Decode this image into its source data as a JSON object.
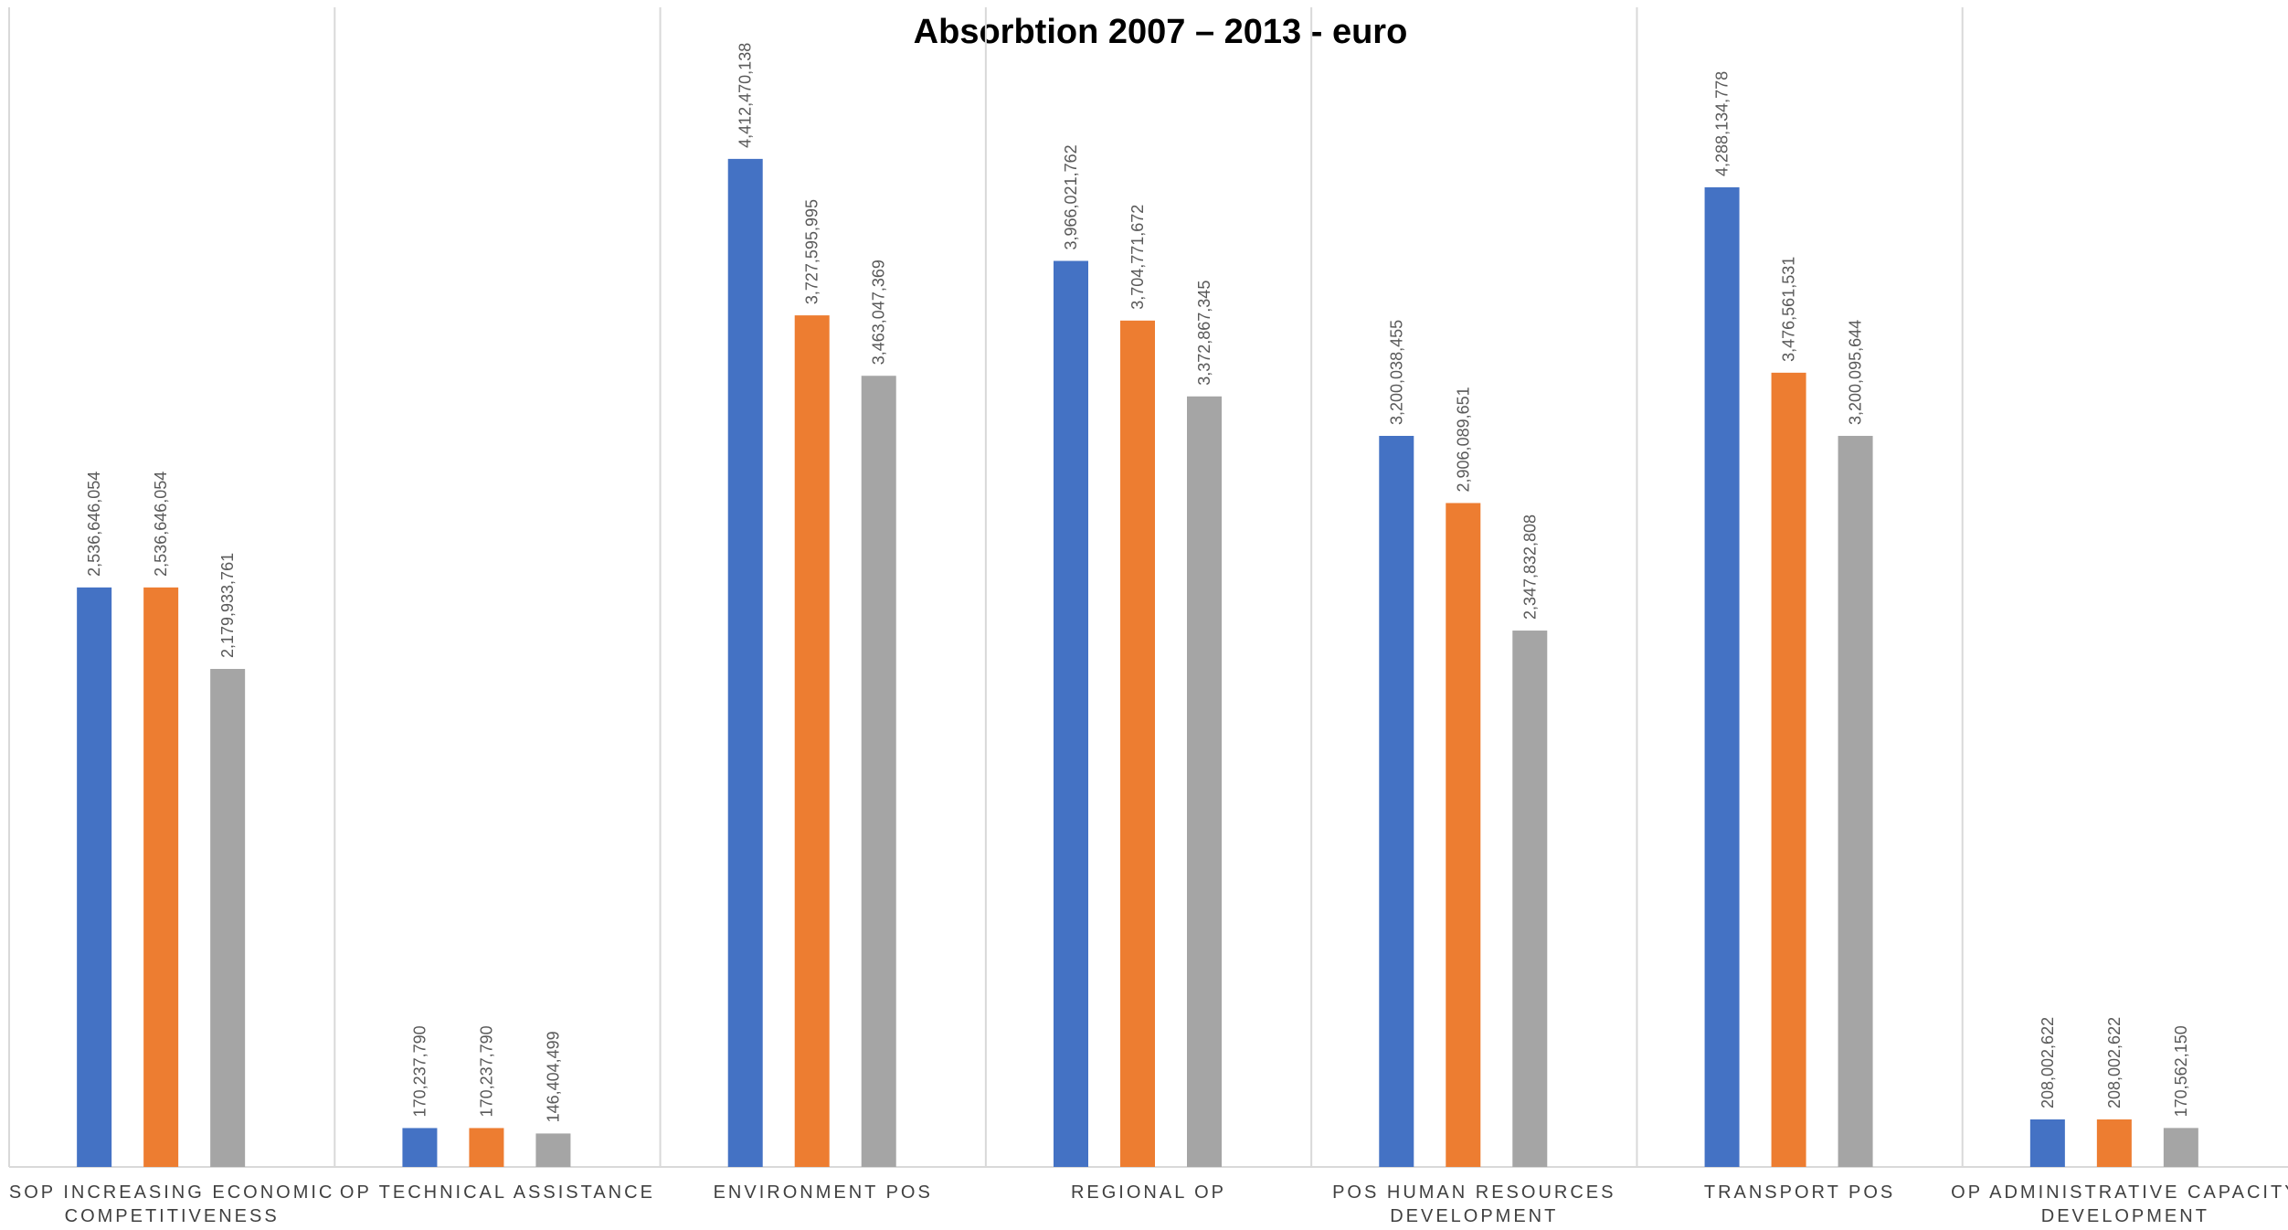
{
  "chart_data": {
    "type": "bar",
    "title": "Absorbtion 2007 – 2013 - euro",
    "xlabel": "",
    "ylabel": "",
    "ylim": [
      0,
      4800000000
    ],
    "grid": "vertical category separators",
    "legend": "none",
    "categories": [
      [
        "SOP INCREASING ECONOMIC",
        "COMPETITIVENESS"
      ],
      [
        "OP TECHNICAL ASSISTANCE"
      ],
      [
        "ENVIRONMENT POS"
      ],
      [
        "REGIONAL OP"
      ],
      [
        "POS HUMAN RESOURCES",
        "DEVELOPMENT"
      ],
      [
        "TRANSPORT POS"
      ],
      [
        "OP ADMINISTRATIVE CAPACITY",
        "DEVELOPMENT"
      ]
    ],
    "series": [
      {
        "color": "#4472C4",
        "values": [
          2536646054,
          170237790,
          4412470138,
          3966021762,
          3200038455,
          4288134778,
          208002622
        ],
        "labels": [
          "2,536,646,054",
          "170,237,790",
          "4,412,470,138",
          "3,966,021,762",
          "3,200,038,455",
          "4,288,134,778",
          "208,002,622"
        ]
      },
      {
        "color": "#ED7D31",
        "values": [
          2536646054,
          170237790,
          3727595995,
          3704771672,
          2906089651,
          3476561531,
          208002622
        ],
        "labels": [
          "2,536,646,054",
          "170,237,790",
          "3,727,595,995",
          "3,704,771,672",
          "2,906,089,651",
          "3,476,561,531",
          "208,002,622"
        ]
      },
      {
        "color": "#A5A5A5",
        "values": [
          2179933761,
          146404499,
          3463047369,
          3372867345,
          2347832808,
          3200095644,
          170562150
        ],
        "labels": [
          "2,179,933,761",
          "146,404,499",
          "3,463,047,369",
          "3,372,867,345",
          "2,347,832,808",
          "3,200,095,644",
          "170,562,150"
        ]
      }
    ]
  }
}
